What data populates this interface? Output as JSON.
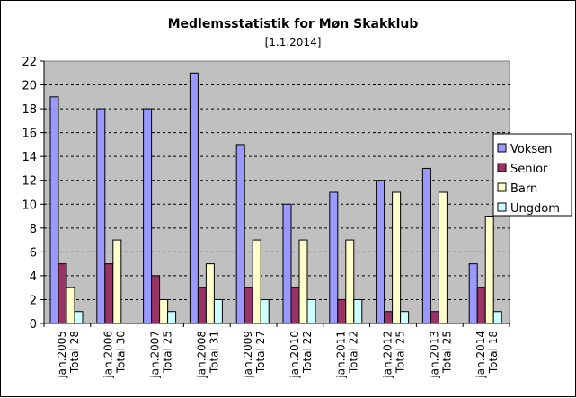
{
  "chart_data": {
    "type": "bar",
    "title": "Medlemsstatistik for Møn Skakklub",
    "subtitle": "[1.1.2014]",
    "xlabel": "",
    "ylabel": "",
    "ylim": [
      0,
      22
    ],
    "yticks": [
      0,
      2,
      4,
      6,
      8,
      10,
      12,
      14,
      16,
      18,
      20,
      22
    ],
    "grid": true,
    "legend_position": "right",
    "categories": [
      {
        "date": "jan.2005",
        "total": "Total 28"
      },
      {
        "date": "jan.2006",
        "total": "Total 30"
      },
      {
        "date": "jan.2007",
        "total": "Total 25"
      },
      {
        "date": "jan.2008",
        "total": "Total 31"
      },
      {
        "date": "jan.2009",
        "total": "Total 27"
      },
      {
        "date": "jan.2010",
        "total": "Total 22"
      },
      {
        "date": "jan.2011",
        "total": "Total 22"
      },
      {
        "date": "jan.2012",
        "total": "Total 25"
      },
      {
        "date": "jan.2013",
        "total": "Total 25"
      },
      {
        "date": "jan.2014",
        "total": "Total 18"
      }
    ],
    "series": [
      {
        "name": "Voksen",
        "color": "#9999ff",
        "values": [
          19,
          18,
          18,
          21,
          15,
          10,
          11,
          12,
          13,
          5
        ]
      },
      {
        "name": "Senior",
        "color": "#993366",
        "values": [
          5,
          5,
          4,
          3,
          3,
          3,
          2,
          1,
          1,
          3
        ]
      },
      {
        "name": "Barn",
        "color": "#ffffcc",
        "values": [
          3,
          7,
          2,
          5,
          7,
          7,
          7,
          11,
          11,
          9
        ]
      },
      {
        "name": "Ungdom",
        "color": "#ccffff",
        "values": [
          1,
          0,
          1,
          2,
          2,
          2,
          2,
          1,
          0,
          1
        ]
      }
    ],
    "plot_background": "#c0c0c0"
  }
}
